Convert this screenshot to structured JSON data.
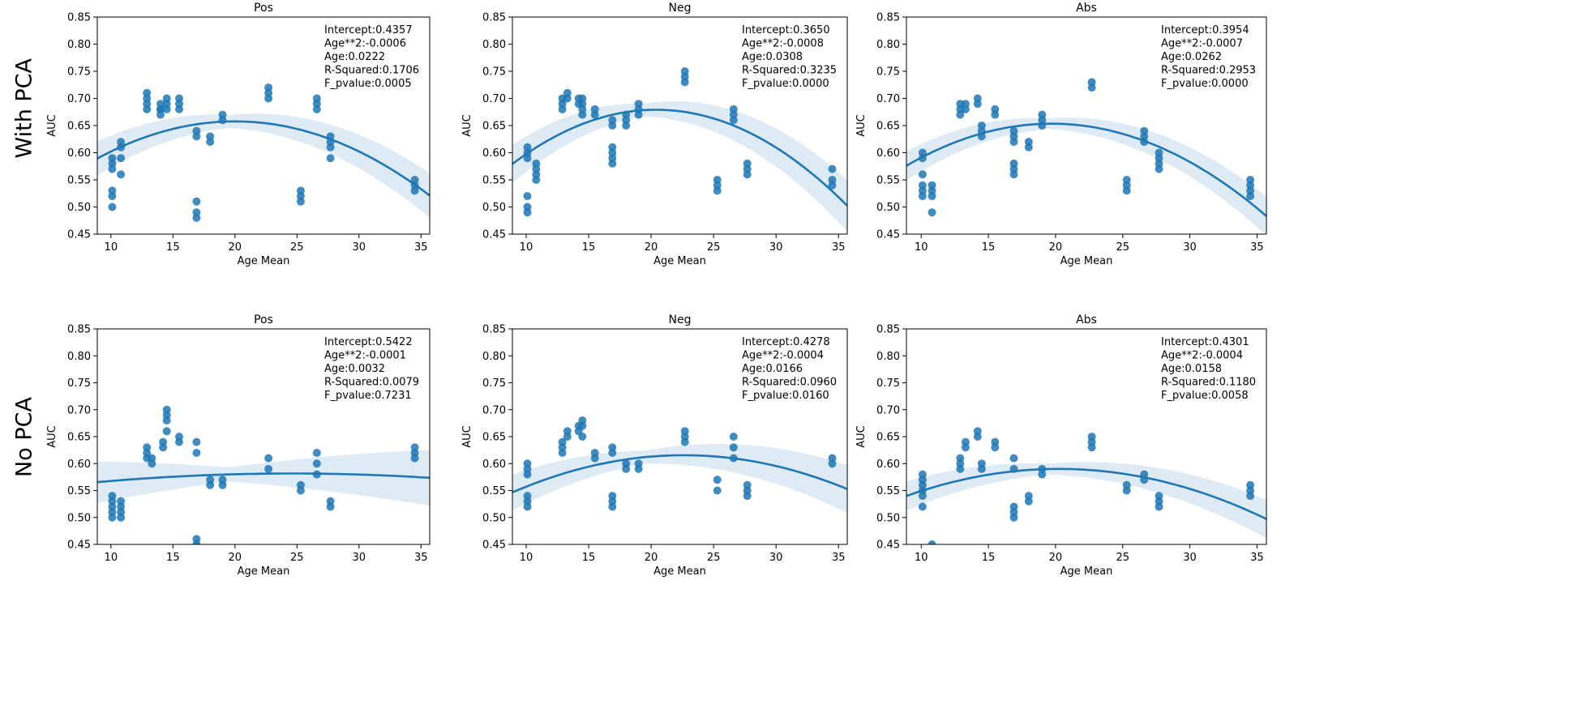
{
  "row_labels": [
    "With PCA",
    "No PCA"
  ],
  "chart_data": [
    {
      "type": "scatter",
      "title": "Pos",
      "xlabel": "Age Mean",
      "ylabel": "AUC",
      "xlim": [
        8.9,
        35.7
      ],
      "ylim": [
        0.45,
        0.85
      ],
      "xticks": [
        10,
        15,
        20,
        25,
        30,
        35
      ],
      "yticks": [
        0.45,
        0.5,
        0.55,
        0.6,
        0.65,
        0.7,
        0.75,
        0.8,
        0.85
      ],
      "stats": [
        "Intercept:0.4357",
        "Age**2:-0.0006",
        "Age:0.0222",
        "R-Squared:0.1706",
        "F_pvalue:0.0005"
      ],
      "fit": {
        "intercept": 0.4357,
        "a2": -0.000555,
        "a1": 0.0222,
        "ci_base": 0.012,
        "ci_scale": 0.0018
      },
      "points": [
        {
          "x": 10.1,
          "y": [
            0.59,
            0.58,
            0.57,
            0.53,
            0.52,
            0.5
          ]
        },
        {
          "x": 10.8,
          "y": [
            0.62,
            0.61,
            0.59,
            0.56
          ]
        },
        {
          "x": 12.9,
          "y": [
            0.71,
            0.7,
            0.69,
            0.68
          ]
        },
        {
          "x": 14.0,
          "y": [
            0.69,
            0.68,
            0.68,
            0.67
          ]
        },
        {
          "x": 14.5,
          "y": [
            0.7,
            0.69,
            0.68
          ]
        },
        {
          "x": 15.5,
          "y": [
            0.7,
            0.69,
            0.68
          ]
        },
        {
          "x": 16.9,
          "y": [
            0.64,
            0.63,
            0.51,
            0.49,
            0.48
          ]
        },
        {
          "x": 18.0,
          "y": [
            0.63,
            0.62
          ]
        },
        {
          "x": 19.0,
          "y": [
            0.67,
            0.66
          ]
        },
        {
          "x": 22.7,
          "y": [
            0.72,
            0.71,
            0.7
          ]
        },
        {
          "x": 25.3,
          "y": [
            0.53,
            0.52,
            0.51
          ]
        },
        {
          "x": 26.6,
          "y": [
            0.7,
            0.69,
            0.68
          ]
        },
        {
          "x": 27.7,
          "y": [
            0.63,
            0.62,
            0.61,
            0.59
          ]
        },
        {
          "x": 34.5,
          "y": [
            0.55,
            0.54,
            0.53
          ]
        }
      ]
    },
    {
      "type": "scatter",
      "title": "Neg",
      "xlabel": "Age Mean",
      "ylabel": "AUC",
      "xlim": [
        8.9,
        35.7
      ],
      "ylim": [
        0.45,
        0.85
      ],
      "xticks": [
        10,
        15,
        20,
        25,
        30,
        35
      ],
      "yticks": [
        0.45,
        0.5,
        0.55,
        0.6,
        0.65,
        0.7,
        0.75,
        0.8,
        0.85
      ],
      "stats": [
        "Intercept:0.3650",
        "Age**2:-0.0008",
        "Age:0.0308",
        "R-Squared:0.3235",
        "F_pvalue:0.0000"
      ],
      "fit": {
        "intercept": 0.365,
        "a2": -0.000755,
        "a1": 0.0308,
        "ci_base": 0.012,
        "ci_scale": 0.0022
      },
      "points": [
        {
          "x": 10.1,
          "y": [
            0.61,
            0.6,
            0.59,
            0.52,
            0.5,
            0.49
          ]
        },
        {
          "x": 10.8,
          "y": [
            0.58,
            0.57,
            0.56,
            0.55
          ]
        },
        {
          "x": 12.9,
          "y": [
            0.7,
            0.69,
            0.68
          ]
        },
        {
          "x": 13.3,
          "y": [
            0.71,
            0.7
          ]
        },
        {
          "x": 14.2,
          "y": [
            0.7,
            0.69
          ]
        },
        {
          "x": 14.5,
          "y": [
            0.7,
            0.69,
            0.68,
            0.67
          ]
        },
        {
          "x": 15.5,
          "y": [
            0.68,
            0.67
          ]
        },
        {
          "x": 16.9,
          "y": [
            0.66,
            0.65,
            0.61,
            0.6,
            0.59,
            0.58
          ]
        },
        {
          "x": 18.0,
          "y": [
            0.67,
            0.66,
            0.65
          ]
        },
        {
          "x": 19.0,
          "y": [
            0.69,
            0.68,
            0.67
          ]
        },
        {
          "x": 22.7,
          "y": [
            0.75,
            0.74,
            0.73
          ]
        },
        {
          "x": 25.3,
          "y": [
            0.55,
            0.54,
            0.53
          ]
        },
        {
          "x": 26.6,
          "y": [
            0.68,
            0.67,
            0.66
          ]
        },
        {
          "x": 27.7,
          "y": [
            0.58,
            0.57,
            0.56
          ]
        },
        {
          "x": 34.5,
          "y": [
            0.57,
            0.55,
            0.54
          ]
        }
      ]
    },
    {
      "type": "scatter",
      "title": "Abs",
      "xlabel": "Age Mean",
      "ylabel": "AUC",
      "xlim": [
        8.9,
        35.7
      ],
      "ylim": [
        0.45,
        0.85
      ],
      "xticks": [
        10,
        15,
        20,
        25,
        30,
        35
      ],
      "yticks": [
        0.45,
        0.5,
        0.55,
        0.6,
        0.65,
        0.7,
        0.75,
        0.8,
        0.85
      ],
      "stats": [
        "Intercept:0.3954",
        "Age**2:-0.0007",
        "Age:0.0262",
        "R-Squared:0.2953",
        "F_pvalue:0.0000"
      ],
      "fit": {
        "intercept": 0.3954,
        "a2": -0.000665,
        "a1": 0.0262,
        "ci_base": 0.01,
        "ci_scale": 0.0016
      },
      "points": [
        {
          "x": 10.1,
          "y": [
            0.6,
            0.59,
            0.56,
            0.54,
            0.53,
            0.52
          ]
        },
        {
          "x": 10.8,
          "y": [
            0.54,
            0.53,
            0.52,
            0.49
          ]
        },
        {
          "x": 12.9,
          "y": [
            0.69,
            0.68,
            0.67
          ]
        },
        {
          "x": 13.3,
          "y": [
            0.69,
            0.68
          ]
        },
        {
          "x": 14.2,
          "y": [
            0.7,
            0.69
          ]
        },
        {
          "x": 14.5,
          "y": [
            0.65,
            0.64,
            0.63
          ]
        },
        {
          "x": 15.5,
          "y": [
            0.68,
            0.67
          ]
        },
        {
          "x": 16.9,
          "y": [
            0.64,
            0.63,
            0.62,
            0.58,
            0.57,
            0.56
          ]
        },
        {
          "x": 18.0,
          "y": [
            0.62,
            0.61
          ]
        },
        {
          "x": 19.0,
          "y": [
            0.67,
            0.66,
            0.65
          ]
        },
        {
          "x": 22.7,
          "y": [
            0.73,
            0.72
          ]
        },
        {
          "x": 25.3,
          "y": [
            0.55,
            0.54,
            0.53
          ]
        },
        {
          "x": 26.6,
          "y": [
            0.64,
            0.63,
            0.62
          ]
        },
        {
          "x": 27.7,
          "y": [
            0.6,
            0.59,
            0.58,
            0.57
          ]
        },
        {
          "x": 34.5,
          "y": [
            0.55,
            0.54,
            0.53,
            0.52
          ]
        }
      ]
    },
    {
      "type": "scatter",
      "title": "Pos",
      "xlabel": "Age Mean",
      "ylabel": "AUC",
      "xlim": [
        8.9,
        35.7
      ],
      "ylim": [
        0.45,
        0.85
      ],
      "xticks": [
        10,
        15,
        20,
        25,
        30,
        35
      ],
      "yticks": [
        0.45,
        0.5,
        0.55,
        0.6,
        0.65,
        0.7,
        0.75,
        0.8,
        0.85
      ],
      "stats": [
        "Intercept:0.5422",
        "Age**2:-0.0001",
        "Age:0.0032",
        "R-Squared:0.0079",
        "F_pvalue:0.7231"
      ],
      "fit": {
        "intercept": 0.5422,
        "a2": -6.5e-05,
        "a1": 0.0032,
        "ci_base": 0.013,
        "ci_scale": 0.0024
      },
      "points": [
        {
          "x": 10.1,
          "y": [
            0.54,
            0.53,
            0.52,
            0.51,
            0.5
          ]
        },
        {
          "x": 10.8,
          "y": [
            0.53,
            0.52,
            0.51,
            0.5
          ]
        },
        {
          "x": 12.9,
          "y": [
            0.63,
            0.62,
            0.61
          ]
        },
        {
          "x": 13.3,
          "y": [
            0.61,
            0.6
          ]
        },
        {
          "x": 14.2,
          "y": [
            0.64,
            0.63
          ]
        },
        {
          "x": 14.5,
          "y": [
            0.7,
            0.69,
            0.68,
            0.66
          ]
        },
        {
          "x": 15.5,
          "y": [
            0.65,
            0.64
          ]
        },
        {
          "x": 16.9,
          "y": [
            0.64,
            0.62,
            0.46,
            0.45
          ]
        },
        {
          "x": 18.0,
          "y": [
            0.57,
            0.56
          ]
        },
        {
          "x": 19.0,
          "y": [
            0.57,
            0.56
          ]
        },
        {
          "x": 22.7,
          "y": [
            0.61,
            0.59
          ]
        },
        {
          "x": 25.3,
          "y": [
            0.56,
            0.55
          ]
        },
        {
          "x": 26.6,
          "y": [
            0.62,
            0.6,
            0.58
          ]
        },
        {
          "x": 27.7,
          "y": [
            0.53,
            0.52
          ]
        },
        {
          "x": 34.5,
          "y": [
            0.63,
            0.62,
            0.61
          ]
        }
      ]
    },
    {
      "type": "scatter",
      "title": "Neg",
      "xlabel": "Age Mean",
      "ylabel": "AUC",
      "xlim": [
        8.9,
        35.7
      ],
      "ylim": [
        0.45,
        0.85
      ],
      "xticks": [
        10,
        15,
        20,
        25,
        30,
        35
      ],
      "yticks": [
        0.45,
        0.5,
        0.55,
        0.6,
        0.65,
        0.7,
        0.75,
        0.8,
        0.85
      ],
      "stats": [
        "Intercept:0.4278",
        "Age**2:-0.0004",
        "Age:0.0166",
        "R-Squared:0.0960",
        "F_pvalue:0.0160"
      ],
      "fit": {
        "intercept": 0.4278,
        "a2": -0.000367,
        "a1": 0.0166,
        "ci_base": 0.012,
        "ci_scale": 0.002
      },
      "points": [
        {
          "x": 10.1,
          "y": [
            0.6,
            0.59,
            0.58,
            0.54,
            0.53,
            0.52
          ]
        },
        {
          "x": 12.9,
          "y": [
            0.64,
            0.63,
            0.62
          ]
        },
        {
          "x": 13.3,
          "y": [
            0.66,
            0.65
          ]
        },
        {
          "x": 14.2,
          "y": [
            0.67,
            0.66
          ]
        },
        {
          "x": 14.5,
          "y": [
            0.68,
            0.67,
            0.65
          ]
        },
        {
          "x": 15.5,
          "y": [
            0.62,
            0.61
          ]
        },
        {
          "x": 16.9,
          "y": [
            0.63,
            0.62,
            0.54,
            0.53,
            0.52
          ]
        },
        {
          "x": 18.0,
          "y": [
            0.6,
            0.59
          ]
        },
        {
          "x": 19.0,
          "y": [
            0.6,
            0.59
          ]
        },
        {
          "x": 22.7,
          "y": [
            0.66,
            0.65,
            0.64
          ]
        },
        {
          "x": 25.3,
          "y": [
            0.57,
            0.55
          ]
        },
        {
          "x": 26.6,
          "y": [
            0.65,
            0.63,
            0.61
          ]
        },
        {
          "x": 27.7,
          "y": [
            0.56,
            0.55,
            0.54
          ]
        },
        {
          "x": 34.5,
          "y": [
            0.61,
            0.6
          ]
        }
      ]
    },
    {
      "type": "scatter",
      "title": "Abs",
      "xlabel": "Age Mean",
      "ylabel": "AUC",
      "xlim": [
        8.9,
        35.7
      ],
      "ylim": [
        0.45,
        0.85
      ],
      "xticks": [
        10,
        15,
        20,
        25,
        30,
        35
      ],
      "yticks": [
        0.45,
        0.5,
        0.55,
        0.6,
        0.65,
        0.7,
        0.75,
        0.8,
        0.85
      ],
      "stats": [
        "Intercept:0.4301",
        "Age**2:-0.0004",
        "Age:0.0158",
        "R-Squared:0.1180",
        "F_pvalue:0.0058"
      ],
      "fit": {
        "intercept": 0.4301,
        "a2": -0.00039,
        "a1": 0.0158,
        "ci_base": 0.01,
        "ci_scale": 0.0016
      },
      "points": [
        {
          "x": 10.1,
          "y": [
            0.58,
            0.57,
            0.56,
            0.55,
            0.54,
            0.52
          ]
        },
        {
          "x": 10.8,
          "y": [
            0.45
          ]
        },
        {
          "x": 12.9,
          "y": [
            0.61,
            0.6,
            0.59
          ]
        },
        {
          "x": 13.3,
          "y": [
            0.64,
            0.63
          ]
        },
        {
          "x": 14.2,
          "y": [
            0.66,
            0.65
          ]
        },
        {
          "x": 14.5,
          "y": [
            0.6,
            0.59
          ]
        },
        {
          "x": 15.5,
          "y": [
            0.64,
            0.63
          ]
        },
        {
          "x": 16.9,
          "y": [
            0.61,
            0.59,
            0.52,
            0.51,
            0.5
          ]
        },
        {
          "x": 18.0,
          "y": [
            0.54,
            0.53
          ]
        },
        {
          "x": 19.0,
          "y": [
            0.59,
            0.58
          ]
        },
        {
          "x": 22.7,
          "y": [
            0.65,
            0.64,
            0.63
          ]
        },
        {
          "x": 25.3,
          "y": [
            0.56,
            0.55
          ]
        },
        {
          "x": 26.6,
          "y": [
            0.58,
            0.57
          ]
        },
        {
          "x": 27.7,
          "y": [
            0.54,
            0.53,
            0.52
          ]
        },
        {
          "x": 34.5,
          "y": [
            0.56,
            0.55,
            0.54
          ]
        }
      ]
    }
  ]
}
